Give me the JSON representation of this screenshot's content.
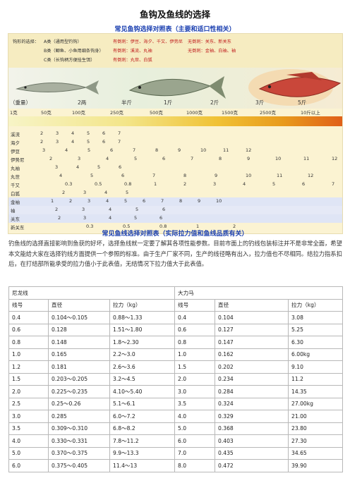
{
  "title": "鱼钩及鱼线的选择",
  "hook_section": {
    "subtitle": "常见鱼钩选择对照表（主要和适口性相关）",
    "legend": [
      {
        "label": "钩形的选择：",
        "cls": "A类（通用型钓钩）",
        "good": "有倒刺：伊豆、海夕、千又、伊势尼",
        "bad": "无倒刺：关东、新关东"
      },
      {
        "label": "",
        "cls": "B类（鲫鱼、小鱼用细条钩身）",
        "good": "有倒刺：溪流、丸袖",
        "bad": "无倒刺：金袖、白袖、袖"
      },
      {
        "label": "",
        "cls": "C类（长钩柄方便挂生饵）",
        "good": "有倒刺：丸世、白狐",
        "bad": ""
      }
    ],
    "weights_top": [
      "（重量）",
      "2两",
      "半斤",
      "1斤",
      "2斤",
      "3斤",
      "5斤"
    ],
    "weights_bottom": [
      "1克",
      "50克",
      "100克",
      "250克",
      "500克",
      "1000克",
      "1500克",
      "2500克",
      "10斤以上"
    ],
    "rows": [
      {
        "name": "溪流",
        "vals": [
          "2",
          "3",
          "4",
          "5",
          "6",
          "7"
        ]
      },
      {
        "name": "海夕",
        "vals": [
          "2",
          "3",
          "4",
          "5",
          "6",
          "7"
        ]
      },
      {
        "name": "伊豆",
        "vals": [
          "3",
          "4",
          "5",
          "6",
          "7",
          "8",
          "9",
          "10",
          "11",
          "12"
        ]
      },
      {
        "name": "伊势尼",
        "vals": [
          "2",
          "3",
          "4",
          "5",
          "6",
          "7",
          "8",
          "9",
          "10",
          "11",
          "12"
        ]
      },
      {
        "name": "丸袖",
        "vals": [
          "3",
          "4",
          "5",
          "6"
        ]
      },
      {
        "name": "丸世",
        "vals": [
          "4",
          "5",
          "6",
          "7",
          "8",
          "9",
          "10",
          "11",
          "12"
        ]
      },
      {
        "name": "千又",
        "vals": [
          "0.3",
          "0.5",
          "0.8",
          "1",
          "2",
          "3",
          "4",
          "5",
          "6",
          "7"
        ]
      },
      {
        "name": "白狐",
        "vals": [
          "2",
          "3",
          "4",
          "5"
        ]
      },
      {
        "name": "金袖",
        "vals": [
          "1",
          "2",
          "3",
          "4",
          "5",
          "6",
          "7",
          "8",
          "9",
          "10"
        ]
      },
      {
        "name": "袖",
        "vals": [
          "2",
          "3",
          "4",
          "5",
          "6"
        ]
      },
      {
        "name": "关东",
        "vals": [
          "2",
          "3",
          "4",
          "5",
          "6"
        ]
      },
      {
        "name": "新关东",
        "vals": [
          "0.3",
          "0.5",
          "0.8",
          "1",
          "2"
        ]
      }
    ]
  },
  "line_section": {
    "subtitle": "常见鱼线选择对照表（实际拉力值和鱼线品质有关）",
    "description": "钓鱼线的选择直接影响到鱼获的好坏，选择鱼线就一定要了解其各项性能参数。目前市面上的钓线包装标注并不是非常全面，希望本文能给大家在选择钓线方面提供一个参照的标准。由于生产厂家不同，生产的线径略有出入，拉力值也不尽相同。结拉力指系扣后，在打结部所能承受的拉力值小于此表值，无结情况下拉力值大于此表值。",
    "brand_left": "尼龙线",
    "brand_right": "大力马",
    "headers": [
      "线号",
      "直径",
      "拉力（kg）",
      "线号",
      "直径",
      "拉力（kg）"
    ],
    "rows": [
      [
        "0.4",
        "0.104～0.105",
        "0.88～1.33",
        "0.4",
        "0.104",
        "3.08"
      ],
      [
        "0.6",
        "0.128",
        "1.51～1.80",
        "0.6",
        "0.127",
        "5.25"
      ],
      [
        "0.8",
        "0.148",
        "1.8～2.30",
        "0.8",
        "0.147",
        "6.30"
      ],
      [
        "1.0",
        "0.165",
        "2.2～3.0",
        "1.0",
        "0.162",
        "6.00kg"
      ],
      [
        "1.2",
        "0.181",
        "2.6～3.6",
        "1.5",
        "0.202",
        "9.10"
      ],
      [
        "1.5",
        "0.203～0.205",
        "3.2～4.5",
        "2.0",
        "0.234",
        "11.2"
      ],
      [
        "2.0",
        "0.225～0.235",
        "4.10～5.40",
        "3.0",
        "0.284",
        "14.35"
      ],
      [
        "2.5",
        "0.25～0.26",
        "5.1～6.1",
        "3.5",
        "0.324",
        "27.00kg"
      ],
      [
        "3.0",
        "0.285",
        "6.0～7.2",
        "4.0",
        "0.329",
        "21.00"
      ],
      [
        "3.5",
        "0.309～0.310",
        "6.8～8.2",
        "5.0",
        "0.368",
        "23.80"
      ],
      [
        "4.0",
        "0.330～0.331",
        "7.8～11.2",
        "6.0",
        "0.403",
        "27.30"
      ],
      [
        "5.0",
        "0.370～0.375",
        "9.9～13.3",
        "7.0",
        "0.435",
        "34.65"
      ],
      [
        "6.0",
        "0.375～0.405",
        "11.4～13",
        "8.0",
        "0.472",
        "39.90"
      ]
    ]
  }
}
